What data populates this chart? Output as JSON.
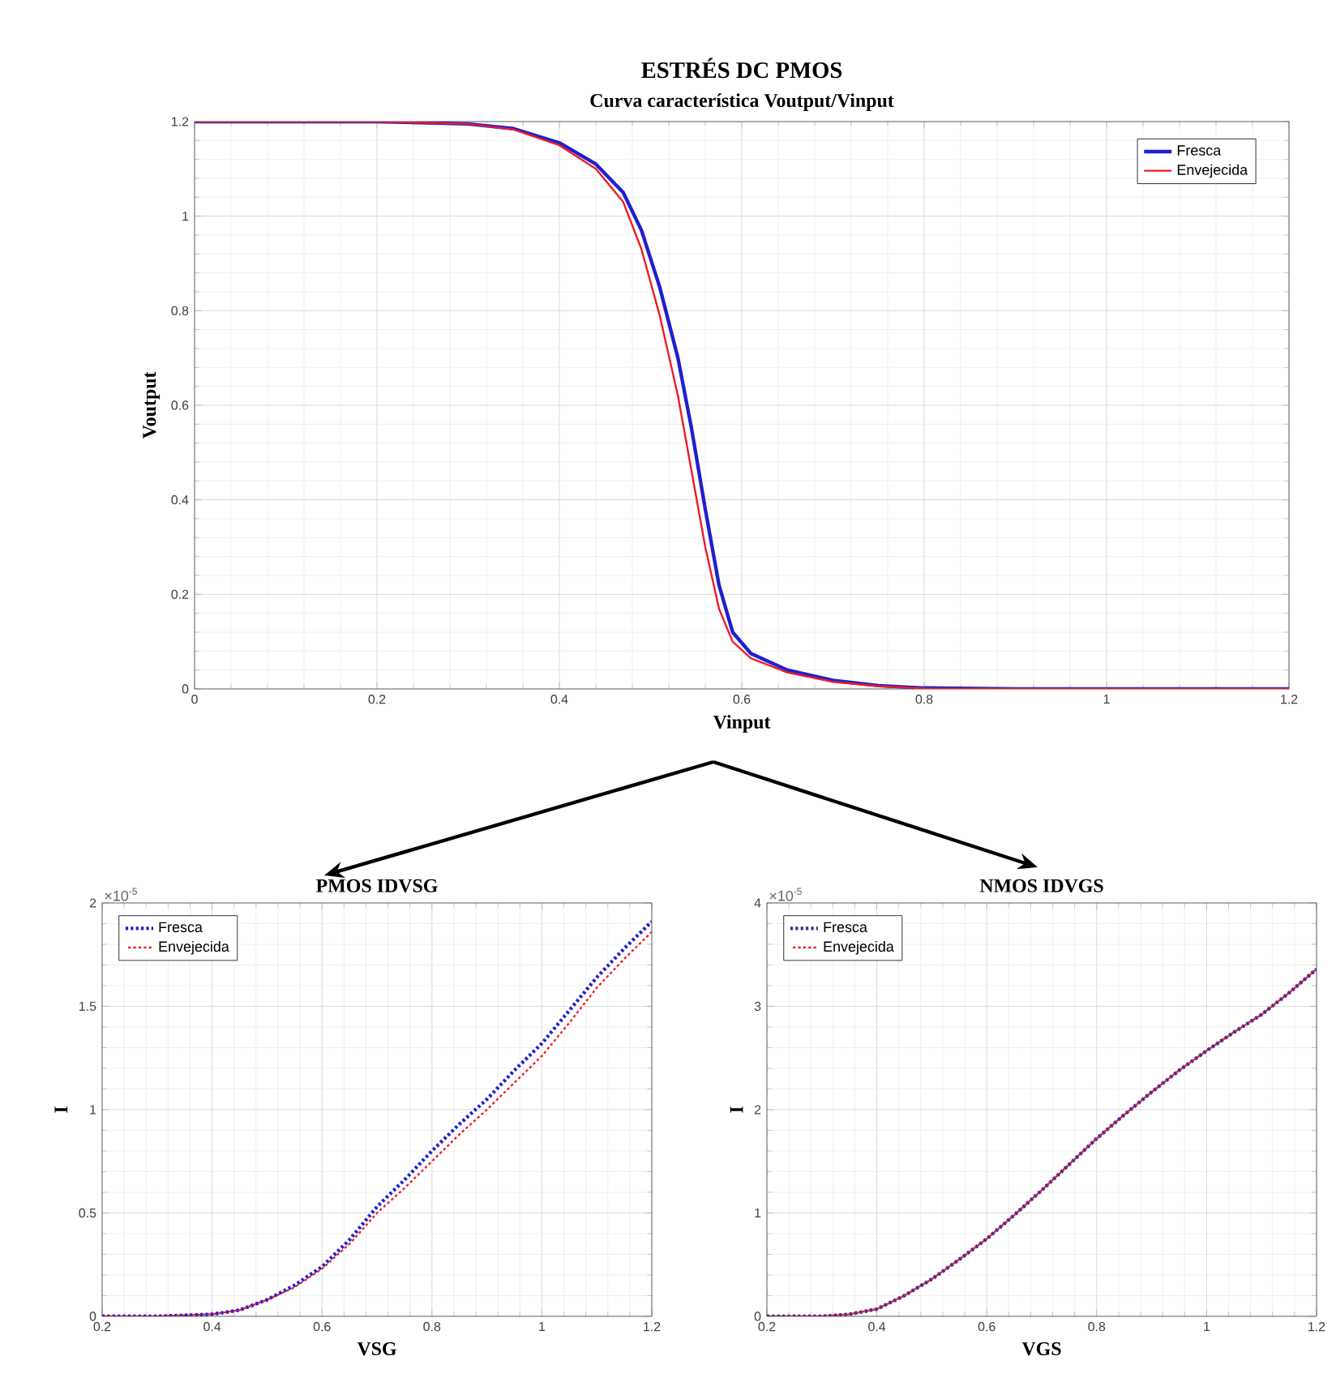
{
  "chart_data": [
    {
      "type": "line",
      "title": "ESTRÉS DC PMOS",
      "subtitle": "Curva característica Voutput/Vinput",
      "xlabel": "Vinput",
      "ylabel": "Voutput",
      "xlim": [
        0,
        1.2
      ],
      "ylim": [
        0,
        1.2
      ],
      "xticks": [
        0,
        0.2,
        0.4,
        0.6,
        0.8,
        1,
        1.2
      ],
      "yticks": [
        0,
        0.2,
        0.4,
        0.6,
        0.8,
        1,
        1.2
      ],
      "grid": true,
      "legend": "top right",
      "series": [
        {
          "name": "Fresca",
          "color": "#1f1fd0",
          "x": [
            0,
            0.2,
            0.3,
            0.35,
            0.4,
            0.44,
            0.47,
            0.49,
            0.51,
            0.53,
            0.545,
            0.56,
            0.575,
            0.59,
            0.61,
            0.65,
            0.7,
            0.75,
            0.8,
            0.9,
            1.2
          ],
          "values": [
            1.2,
            1.2,
            1.195,
            1.185,
            1.155,
            1.11,
            1.05,
            0.97,
            0.85,
            0.7,
            0.55,
            0.38,
            0.22,
            0.12,
            0.075,
            0.04,
            0.018,
            0.007,
            0.002,
            0,
            0
          ]
        },
        {
          "name": "Envejecida",
          "color": "#ee1c25",
          "x": [
            0,
            0.2,
            0.3,
            0.35,
            0.4,
            0.44,
            0.47,
            0.49,
            0.51,
            0.53,
            0.545,
            0.56,
            0.575,
            0.59,
            0.61,
            0.65,
            0.7,
            0.75,
            0.8,
            0.9,
            1.2
          ],
          "values": [
            1.2,
            1.2,
            1.195,
            1.183,
            1.15,
            1.1,
            1.03,
            0.93,
            0.79,
            0.62,
            0.46,
            0.3,
            0.17,
            0.1,
            0.065,
            0.035,
            0.015,
            0.006,
            0.001,
            0,
            0
          ]
        }
      ]
    },
    {
      "type": "line",
      "title": "PMOS IDVSG",
      "xlabel": "VSG",
      "ylabel": "I",
      "annotations": [
        "×10$^{-5}$"
      ],
      "xlim": [
        0.2,
        1.2
      ],
      "ylim": [
        0,
        2
      ],
      "xticks": [
        0.2,
        0.4,
        0.6,
        0.8,
        1,
        1.2
      ],
      "yticks": [
        0,
        0.5,
        1,
        1.5,
        2
      ],
      "grid": true,
      "legend": "top left",
      "line_style": "dotted",
      "x": [
        0.2,
        0.3,
        0.4,
        0.45,
        0.5,
        0.55,
        0.6,
        0.65,
        0.7,
        0.75,
        0.8,
        0.85,
        0.9,
        0.95,
        1.0,
        1.05,
        1.1,
        1.15,
        1.2
      ],
      "series": [
        {
          "name": "Fresca",
          "color": "#1f1fd0",
          "values": [
            0,
            0,
            0.01,
            0.03,
            0.08,
            0.15,
            0.24,
            0.37,
            0.53,
            0.66,
            0.8,
            0.93,
            1.05,
            1.19,
            1.32,
            1.48,
            1.64,
            1.78,
            1.91
          ]
        },
        {
          "name": "Envejecida",
          "color": "#ee1c25",
          "values": [
            0,
            0,
            0.01,
            0.03,
            0.08,
            0.14,
            0.23,
            0.35,
            0.5,
            0.62,
            0.75,
            0.88,
            1.0,
            1.13,
            1.26,
            1.42,
            1.59,
            1.73,
            1.86
          ]
        }
      ]
    },
    {
      "type": "line",
      "title": "NMOS IDVGS",
      "xlabel": "VGS",
      "ylabel": "I",
      "annotations": [
        "×10$^{-5}$"
      ],
      "xlim": [
        0.2,
        1.2
      ],
      "ylim": [
        0,
        4
      ],
      "xticks": [
        0.2,
        0.4,
        0.6,
        0.8,
        1,
        1.2
      ],
      "yticks": [
        0,
        1,
        2,
        3,
        4
      ],
      "grid": true,
      "legend": "top left",
      "line_style": "dotted",
      "x": [
        0.2,
        0.3,
        0.35,
        0.4,
        0.45,
        0.5,
        0.55,
        0.6,
        0.65,
        0.7,
        0.75,
        0.8,
        0.85,
        0.9,
        0.95,
        1.0,
        1.05,
        1.1,
        1.15,
        1.2
      ],
      "series": [
        {
          "name": "Fresca",
          "color": "#3a2a9a",
          "values": [
            0,
            0,
            0.02,
            0.07,
            0.2,
            0.36,
            0.55,
            0.75,
            0.98,
            1.22,
            1.47,
            1.72,
            1.95,
            2.17,
            2.38,
            2.57,
            2.75,
            2.92,
            3.13,
            3.36
          ]
        },
        {
          "name": "Envejecida",
          "color": "#ee1c25",
          "values": [
            0,
            0,
            0.02,
            0.07,
            0.2,
            0.36,
            0.55,
            0.75,
            0.98,
            1.22,
            1.47,
            1.72,
            1.95,
            2.17,
            2.38,
            2.57,
            2.75,
            2.92,
            3.13,
            3.36
          ]
        }
      ]
    }
  ]
}
